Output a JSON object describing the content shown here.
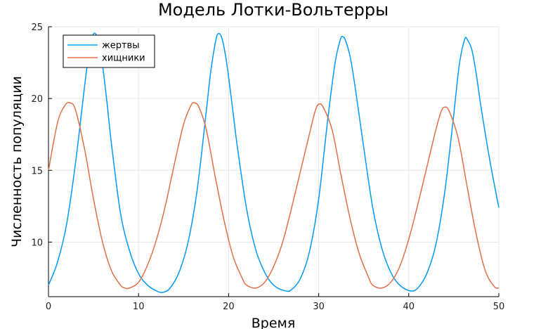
{
  "chart_data": {
    "type": "line",
    "title": "Модель Лотки-Вольтерры",
    "xlabel": "Время",
    "ylabel": "Численность популяции",
    "xlim": [
      0,
      50
    ],
    "ylim": [
      6.2,
      25
    ],
    "xticks": [
      "0",
      "10",
      "20",
      "30",
      "40",
      "50"
    ],
    "yticks": [
      "10",
      "15",
      "20",
      "25"
    ],
    "grid": true,
    "legend_position": "top-left",
    "series": [
      {
        "name": "жертвы",
        "color": "#009AFA",
        "x": [
          0,
          1,
          2,
          3,
          4,
          4.5,
          5,
          5.5,
          6,
          6.5,
          7,
          8,
          9,
          10,
          11,
          12,
          12.7,
          13.5,
          14.5,
          15.5,
          16.5,
          17.5,
          18,
          18.5,
          18.8,
          19.2,
          19.6,
          20,
          20.5,
          21,
          22,
          23,
          24,
          25,
          26.3,
          27,
          28,
          29,
          30,
          31,
          31.8,
          32.4,
          32.7,
          33,
          33.5,
          34,
          34.5,
          35,
          36,
          37,
          38,
          39,
          40.2,
          41,
          42,
          43,
          44,
          45,
          45.6,
          46.2,
          46.5,
          47,
          47.5,
          48,
          49,
          50
        ],
        "y": [
          7.0,
          8.6,
          11.2,
          15.5,
          20.8,
          23.2,
          24.5,
          24.1,
          22.3,
          19.7,
          16.8,
          12.0,
          9.4,
          7.8,
          7.0,
          6.6,
          6.5,
          6.8,
          7.9,
          10.0,
          13.6,
          19.0,
          21.8,
          23.8,
          24.5,
          24.3,
          23.2,
          21.5,
          19.0,
          16.5,
          12.3,
          9.5,
          7.9,
          7.0,
          6.6,
          6.7,
          7.5,
          9.4,
          13.0,
          18.5,
          22.4,
          24.1,
          24.3,
          24.0,
          22.9,
          21.0,
          18.8,
          16.6,
          12.4,
          9.6,
          7.9,
          7.0,
          6.6,
          6.8,
          7.8,
          9.8,
          13.5,
          18.9,
          22.3,
          24.1,
          24.1,
          23.4,
          21.7,
          19.5,
          15.7,
          12.4
        ]
      },
      {
        "name": "хищники",
        "color": "#E26F46",
        "x": [
          0,
          1,
          1.8,
          2.4,
          3,
          4,
          5,
          6,
          7,
          8,
          8.5,
          9,
          10,
          11,
          12,
          13,
          14,
          15,
          15.8,
          16.2,
          16.7,
          17.5,
          18.5,
          19.5,
          20.5,
          21.5,
          22,
          23,
          24,
          25,
          26,
          27,
          28,
          29,
          29.6,
          30,
          30.5,
          31.5,
          32.5,
          33.5,
          34.5,
          35.5,
          36,
          37,
          38,
          39,
          40,
          41,
          42,
          43,
          43.6,
          44,
          44.5,
          45.5,
          46.5,
          47.5,
          48.5,
          49.5,
          50
        ],
        "y": [
          15.0,
          18.3,
          19.5,
          19.7,
          19.2,
          16.5,
          13.0,
          10.0,
          8.0,
          7.0,
          6.8,
          6.8,
          7.2,
          8.4,
          10.2,
          12.6,
          15.5,
          18.2,
          19.5,
          19.7,
          19.4,
          17.9,
          14.6,
          11.5,
          9.0,
          7.5,
          7.0,
          6.8,
          7.2,
          8.3,
          10.0,
          12.4,
          15.0,
          17.6,
          19.1,
          19.6,
          19.4,
          17.8,
          14.6,
          11.6,
          9.2,
          7.6,
          7.0,
          6.8,
          7.2,
          8.3,
          10.2,
          12.6,
          15.2,
          17.8,
          19.1,
          19.4,
          19.1,
          17.2,
          13.8,
          10.5,
          8.0,
          6.9,
          6.8
        ]
      }
    ]
  }
}
